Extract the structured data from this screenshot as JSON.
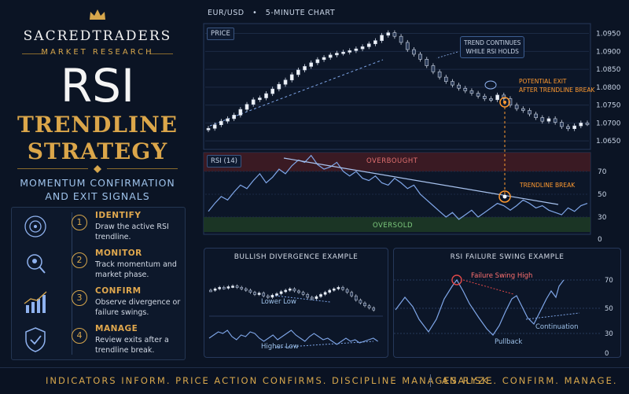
{
  "brand": {
    "name": "SACREDTRADERS",
    "sub": "MARKET RESEARCH"
  },
  "title": {
    "line1": "RSI",
    "line2a": "TRENDLINE",
    "line2b": "STRATEGY",
    "sub1": "MOMENTUM CONFIRMATION",
    "sub2": "AND EXIT SIGNALS"
  },
  "steps": [
    {
      "num": "1",
      "title": "IDENTIFY",
      "desc": "Draw the active RSI trendline.",
      "icon": "target-icon"
    },
    {
      "num": "2",
      "title": "MONITOR",
      "desc": "Track momentum and market phase.",
      "icon": "magnifier-icon"
    },
    {
      "num": "3",
      "title": "CONFIRM",
      "desc": "Observe divergence or failure swings.",
      "icon": "bar-chart-icon"
    },
    {
      "num": "4",
      "title": "MANAGE",
      "desc": "Review exits after a trendline break.",
      "icon": "shield-check-icon"
    }
  ],
  "chart_header": {
    "pair": "EUR/USD",
    "sep": "•",
    "timeframe": "5-MINUTE CHART"
  },
  "labels": {
    "price": "PRICE",
    "rsi": "RSI (14)",
    "overbought": "OVERBOUGHT",
    "oversold": "OVERSOLD",
    "trend_note1": "TREND CONTINUES",
    "trend_note2": "WHILE RSI HOLDS",
    "exit1": "POTENTIAL EXIT",
    "exit2": "AFTER TRENDLINE BREAK",
    "tl_break": "TRENDLINE BREAK",
    "div_title": "BULLISH DIVERGENCE EXAMPLE",
    "lower_low": "Lower Low",
    "higher_low": "Higher Low",
    "fs_title": "RSI FAILURE SWING EXAMPLE",
    "fs_high": "Failure Swing High",
    "continuation": "Continuation",
    "pullback": "Pullback"
  },
  "footer": {
    "left": "INDICATORS INFORM. PRICE ACTION CONFIRMS. DISCIPLINE MANAGES RISK.",
    "right": "ANALYZE. CONFIRM. MANAGE."
  },
  "colors": {
    "gold": "#d6a64c",
    "accent": "#ff9a30",
    "line": "#8fb2ef",
    "ob": "#7a2a2a",
    "os": "#2e5a2e"
  },
  "chart_data": [
    {
      "type": "line",
      "name": "price",
      "ylim": [
        1.0635,
        1.096
      ],
      "y_ticks": [
        "1.0950",
        "1.0900",
        "1.0850",
        "1.0800",
        "1.0750",
        "1.0700",
        "1.0650"
      ],
      "y_tick_values": [
        1.095,
        1.09,
        1.085,
        1.08,
        1.075,
        1.07,
        1.065
      ],
      "values": [
        1.0685,
        1.0695,
        1.0705,
        1.0712,
        1.0722,
        1.0738,
        1.0752,
        1.0765,
        1.077,
        1.0782,
        1.0795,
        1.0808,
        1.082,
        1.0835,
        1.0848,
        1.0858,
        1.0868,
        1.0877,
        1.0883,
        1.089,
        1.0895,
        1.0898,
        1.0902,
        1.0907,
        1.0913,
        1.0921,
        1.093,
        1.0945,
        1.0952,
        1.0942,
        1.0925,
        1.0905,
        1.0892,
        1.0878,
        1.086,
        1.0843,
        1.0828,
        1.0816,
        1.0806,
        1.0797,
        1.079,
        1.0783,
        1.0775,
        1.0768,
        1.0765,
        1.0778,
        1.0768,
        1.075,
        1.074,
        1.0735,
        1.0725,
        1.0715,
        1.0705,
        1.0712,
        1.0702,
        1.069,
        1.0684,
        1.0692,
        1.07,
        1.0698
      ]
    },
    {
      "type": "line",
      "name": "rsi",
      "ylim": [
        0,
        100
      ],
      "y_ticks": [
        "70",
        "50",
        "30",
        "0"
      ],
      "y_tick_values": [
        70,
        50,
        30,
        0
      ],
      "values": [
        35,
        42,
        48,
        45,
        52,
        58,
        55,
        62,
        68,
        60,
        65,
        72,
        68,
        75,
        80,
        78,
        84,
        76,
        72,
        74,
        78,
        70,
        66,
        70,
        64,
        62,
        66,
        60,
        58,
        64,
        60,
        55,
        58,
        50,
        45,
        40,
        35,
        30,
        34,
        28,
        32,
        36,
        30,
        34,
        38,
        42,
        40,
        36,
        40,
        45,
        42,
        38,
        40,
        36,
        34,
        32,
        38,
        35,
        40,
        42
      ]
    }
  ]
}
